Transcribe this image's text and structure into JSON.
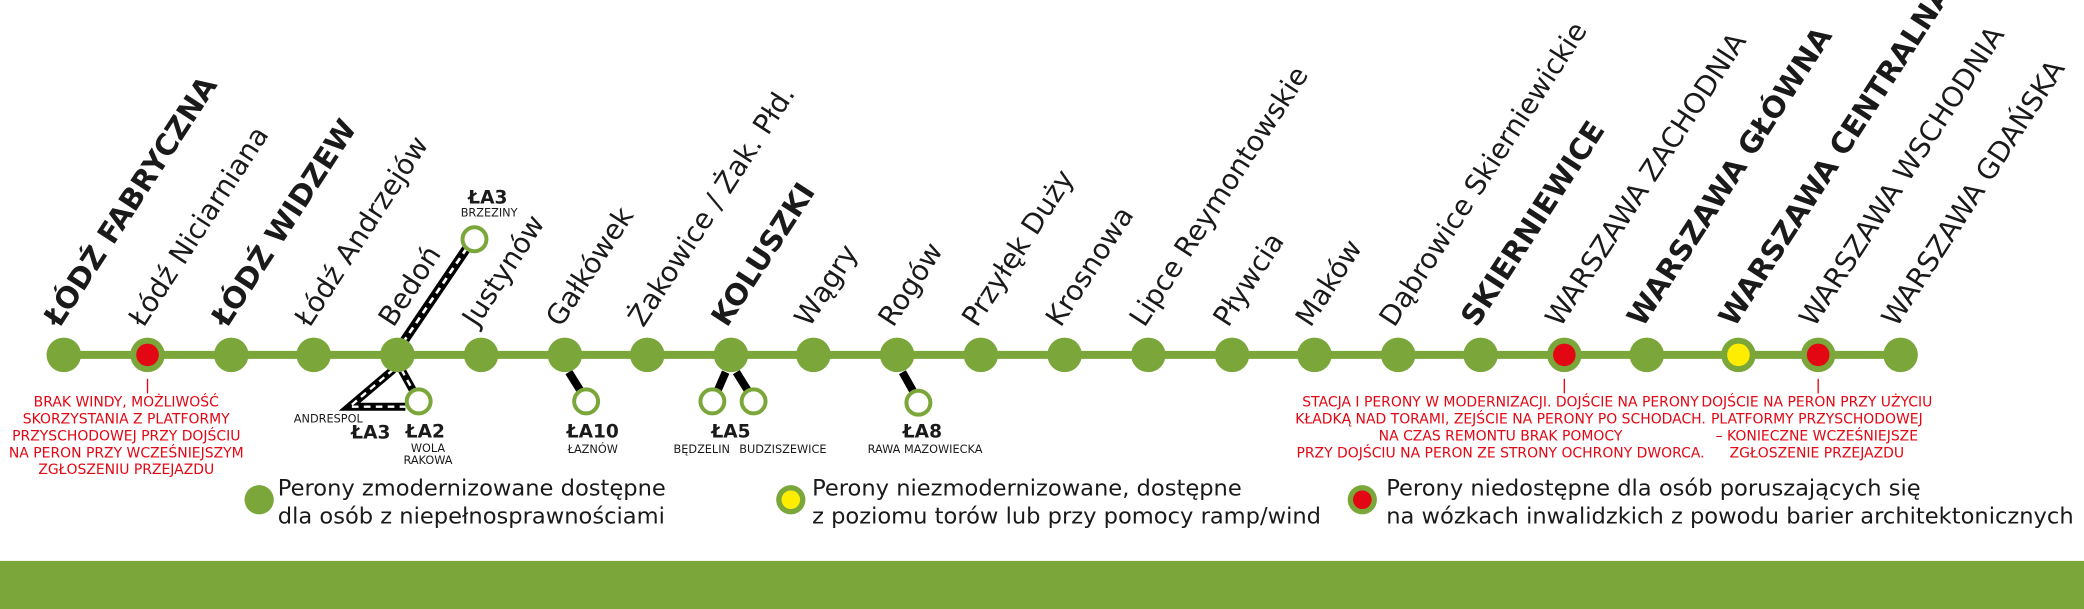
{
  "stations": [
    {
      "name": "ŁÓDŹ FABRYCZNA",
      "status": "accessible",
      "bold": true
    },
    {
      "name": "Łódź Niciarniana",
      "status": "inaccessible",
      "bold": false
    },
    {
      "name": "ŁÓDŹ WIDZEW",
      "status": "accessible",
      "bold": true
    },
    {
      "name": "Łódź Andrzejów",
      "status": "accessible",
      "bold": false
    },
    {
      "name": "Bedoń",
      "status": "accessible",
      "bold": false
    },
    {
      "name": "Justynów",
      "status": "accessible",
      "bold": false
    },
    {
      "name": "Gałkówek",
      "status": "accessible",
      "bold": false
    },
    {
      "name": "Żakowice / Żak. Płd.",
      "status": "accessible",
      "bold": false
    },
    {
      "name": "KOLUSZKI",
      "status": "accessible",
      "bold": true
    },
    {
      "name": "Wągry",
      "status": "accessible",
      "bold": false
    },
    {
      "name": "Rogów",
      "status": "accessible",
      "bold": false
    },
    {
      "name": "Przyłęk Duży",
      "status": "accessible",
      "bold": false
    },
    {
      "name": "Krosnowa",
      "status": "accessible",
      "bold": false
    },
    {
      "name": "Lipce Reymontowskie",
      "status": "accessible",
      "bold": false
    },
    {
      "name": "Pływcia",
      "status": "accessible",
      "bold": false
    },
    {
      "name": "Maków",
      "status": "accessible",
      "bold": false
    },
    {
      "name": "Dąbrowice Skierniewickie",
      "status": "accessible",
      "bold": false
    },
    {
      "name": "SKIERNIEWICE",
      "status": "accessible",
      "bold": true
    },
    {
      "name": "WARSZAWA ZACHODNIA",
      "status": "inaccessible",
      "bold": false
    },
    {
      "name": "WARSZAWA GŁÓWNA",
      "status": "accessible",
      "bold": true
    },
    {
      "name": "WARSZAWA CENTRALNA",
      "status": "ramp",
      "bold": true
    },
    {
      "name": "WARSZAWA WSCHODNIA",
      "status": "inaccessible",
      "bold": false
    },
    {
      "name": "WARSZAWA GDAŃSKA",
      "status": "accessible",
      "bold": false
    }
  ],
  "branches": [
    {
      "code": "ŁA3",
      "destinations": [
        "BRZEZINY"
      ]
    },
    {
      "code": "ŁA3",
      "destinations": [
        "ANDRESPOL"
      ]
    },
    {
      "code": "ŁA2",
      "destinations": [
        "WOLA",
        "RAKOWA"
      ]
    },
    {
      "code": "ŁA10",
      "destinations": [
        "ŁAZNÓW"
      ]
    },
    {
      "code": "ŁA5",
      "destinations": [
        "BĘDZELIN",
        "BUDZISZEWICE"
      ]
    },
    {
      "code": "ŁA8",
      "destinations": [
        "RAWA MAZOWIECKA"
      ]
    }
  ],
  "notes": [
    [
      "BRAK WINDY, MOŻLIWOŚĆ",
      "SKORZYSTANIA Z PLATFORMY",
      "PRZYSCHODOWEJ PRZY DOJŚCIU",
      "NA PERON PRZY WCZEŚNIEJSZYM",
      "ZGŁOSZENIU PRZEJAZDU"
    ],
    [
      "STACJA I PERONY W MODERNIZACJI. DOJŚCIE NA PERONY",
      "KŁADKĄ NAD TORAMI, ZEJŚCIE NA PERONY PO SCHODACH.",
      "NA CZAS REMONTU BRAK POMOCY",
      "PRZY DOJŚCIU NA PERON ZE STRONY OCHRONY DWORCA."
    ],
    [
      "DOJŚCIE NA PERON PRZY UŻYCIU",
      "PLATFORMY PRZYSCHODOWEJ",
      "– KONIECZNE WCZEŚNIEJSZE",
      "ZGŁOSZENIE PRZEJAZDU"
    ]
  ],
  "legend": [
    [
      "Perony zmodernizowane dostępne",
      "dla osób z niepełnosprawnościami"
    ],
    [
      "Perony niezmodernizowane, dostępne",
      "z poziomu torów lub przy pomocy ramp/wind"
    ],
    [
      "Perony niedostępne dla osób poruszających się",
      "na wózkach inwalidzkich z powodu barier architektonicznych"
    ]
  ]
}
